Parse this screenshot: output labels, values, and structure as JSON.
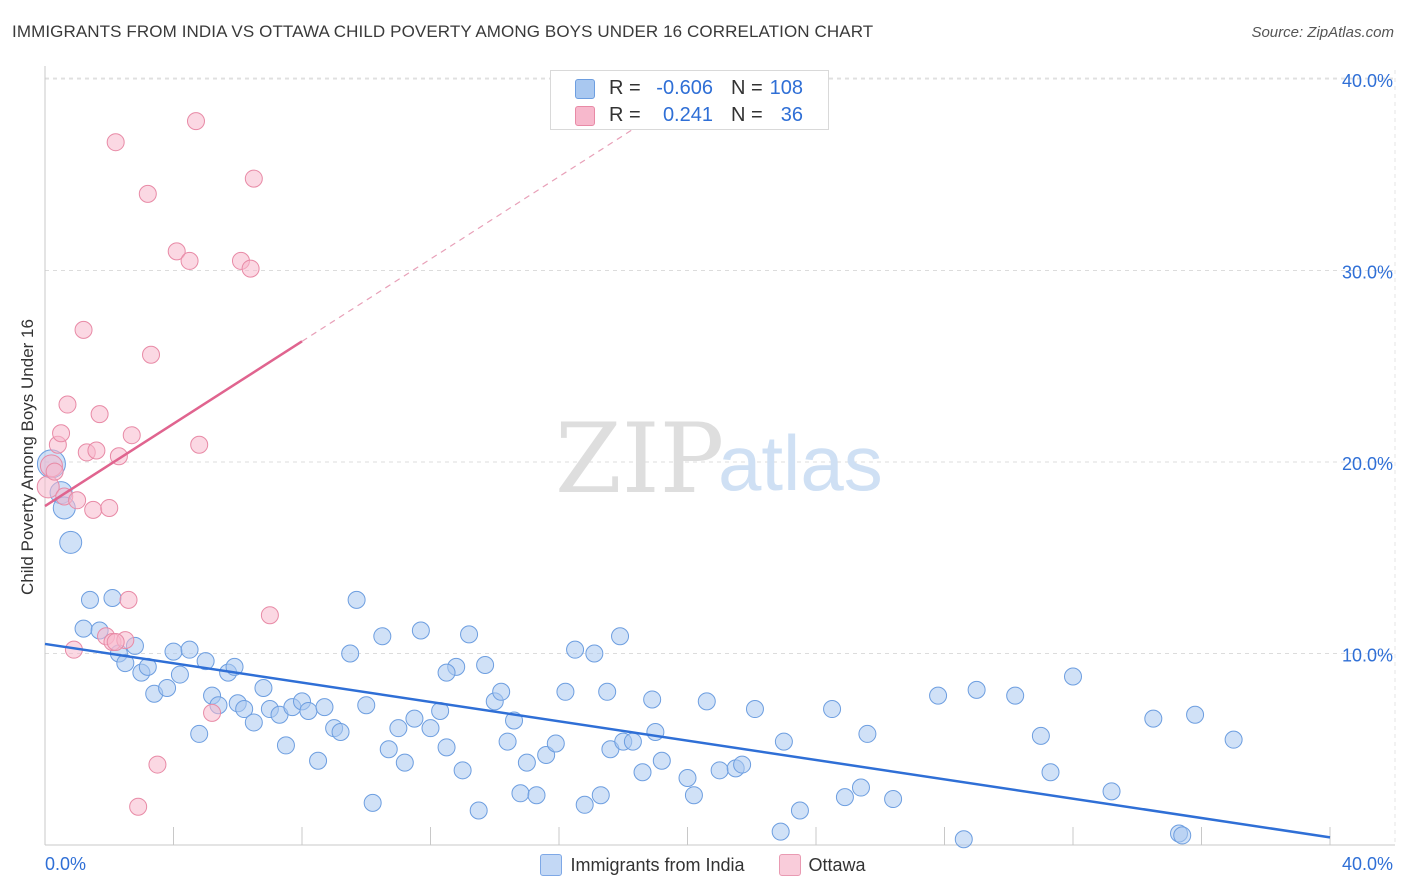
{
  "title": "IMMIGRANTS FROM INDIA VS OTTAWA CHILD POVERTY AMONG BOYS UNDER 16 CORRELATION CHART",
  "source": "Source: ZipAtlas.com",
  "watermark": {
    "zip": "ZIP",
    "atlas": "atlas"
  },
  "stats": [
    {
      "r_label": "R =",
      "r_value": "-0.606",
      "n_label": "N =",
      "n_value": "108",
      "color": "#a9c8f0",
      "border": "#6d9ee0"
    },
    {
      "r_label": "R =",
      "r_value": "0.241",
      "n_label": "N =",
      "n_value": "36",
      "color": "#f7b8cc",
      "border": "#e88aa6"
    }
  ],
  "legend": [
    {
      "label": "Immigrants from India",
      "color": "#c3d8f5",
      "border": "#7ea8e6"
    },
    {
      "label": "Ottawa",
      "color": "#f9ccda",
      "border": "#e99ab2"
    }
  ],
  "chart_data": {
    "type": "scatter",
    "title": "IMMIGRANTS FROM INDIA VS OTTAWA CHILD POVERTY AMONG BOYS UNDER 16 CORRELATION CHART",
    "xlabel": "",
    "ylabel": "Child Poverty Among Boys Under 16",
    "xlim": [
      0,
      40
    ],
    "ylim": [
      0,
      42
    ],
    "x_tick_labels": [
      "0.0%",
      "40.0%"
    ],
    "y_ticks": [
      10,
      20,
      30,
      40
    ],
    "y_tick_labels": [
      "10.0%",
      "20.0%",
      "30.0%",
      "40.0%"
    ],
    "grid": true,
    "legend_position": "bottom",
    "colors": {
      "blue": "#2f6fd6",
      "pink": "#e0648f",
      "axis_label": "#2f6fd6"
    },
    "series": [
      {
        "name": "Immigrants from India",
        "color": "#a9c8f0",
        "edge": "#6d9ee0",
        "points": [
          [
            0.2,
            19.9
          ],
          [
            0.5,
            18.4
          ],
          [
            0.6,
            17.6
          ],
          [
            0.8,
            15.8
          ],
          [
            1.4,
            12.8
          ],
          [
            1.2,
            11.3
          ],
          [
            1.7,
            11.2
          ],
          [
            2.1,
            12.9
          ],
          [
            2.3,
            10.0
          ],
          [
            2.5,
            9.5
          ],
          [
            2.8,
            10.4
          ],
          [
            3.0,
            9.0
          ],
          [
            3.2,
            9.3
          ],
          [
            3.4,
            7.9
          ],
          [
            3.8,
            8.2
          ],
          [
            4.0,
            10.1
          ],
          [
            4.2,
            8.9
          ],
          [
            4.5,
            10.2
          ],
          [
            4.8,
            5.8
          ],
          [
            5.0,
            9.6
          ],
          [
            5.2,
            7.8
          ],
          [
            5.4,
            7.3
          ],
          [
            5.7,
            9.0
          ],
          [
            5.9,
            9.3
          ],
          [
            6.0,
            7.4
          ],
          [
            6.2,
            7.1
          ],
          [
            6.5,
            6.4
          ],
          [
            6.8,
            8.2
          ],
          [
            7.0,
            7.1
          ],
          [
            7.3,
            6.8
          ],
          [
            7.5,
            5.2
          ],
          [
            7.7,
            7.2
          ],
          [
            8.0,
            7.5
          ],
          [
            8.2,
            7.0
          ],
          [
            8.5,
            4.4
          ],
          [
            8.7,
            7.2
          ],
          [
            9.0,
            6.1
          ],
          [
            9.2,
            5.9
          ],
          [
            9.5,
            10.0
          ],
          [
            9.7,
            12.8
          ],
          [
            10.0,
            7.3
          ],
          [
            10.2,
            2.2
          ],
          [
            10.5,
            10.9
          ],
          [
            10.7,
            5.0
          ],
          [
            11.0,
            6.1
          ],
          [
            11.2,
            4.3
          ],
          [
            11.5,
            6.6
          ],
          [
            11.7,
            11.2
          ],
          [
            12.0,
            6.1
          ],
          [
            12.3,
            7.0
          ],
          [
            12.5,
            5.1
          ],
          [
            12.8,
            9.3
          ],
          [
            13.0,
            3.9
          ],
          [
            13.2,
            11.0
          ],
          [
            13.5,
            1.8
          ],
          [
            13.7,
            9.4
          ],
          [
            14.0,
            7.5
          ],
          [
            14.2,
            8.0
          ],
          [
            14.4,
            5.4
          ],
          [
            14.6,
            6.5
          ],
          [
            14.8,
            2.7
          ],
          [
            15.0,
            4.3
          ],
          [
            15.3,
            2.6
          ],
          [
            15.6,
            4.7
          ],
          [
            15.9,
            5.3
          ],
          [
            16.2,
            8.0
          ],
          [
            16.5,
            10.2
          ],
          [
            16.8,
            2.1
          ],
          [
            17.1,
            10.0
          ],
          [
            17.3,
            2.6
          ],
          [
            17.6,
            5.0
          ],
          [
            17.9,
            10.9
          ],
          [
            18.0,
            5.4
          ],
          [
            18.3,
            5.4
          ],
          [
            18.6,
            3.8
          ],
          [
            18.9,
            7.6
          ],
          [
            19.0,
            5.9
          ],
          [
            19.2,
            4.4
          ],
          [
            20.0,
            3.5
          ],
          [
            20.2,
            2.6
          ],
          [
            20.6,
            7.5
          ],
          [
            21.0,
            3.9
          ],
          [
            21.5,
            4.0
          ],
          [
            21.7,
            4.2
          ],
          [
            22.1,
            7.1
          ],
          [
            22.9,
            0.7
          ],
          [
            23.0,
            5.4
          ],
          [
            23.5,
            1.8
          ],
          [
            24.5,
            7.1
          ],
          [
            24.9,
            2.5
          ],
          [
            25.4,
            3.0
          ],
          [
            25.6,
            5.8
          ],
          [
            26.4,
            2.4
          ],
          [
            27.8,
            7.8
          ],
          [
            28.6,
            0.3
          ],
          [
            29.0,
            8.1
          ],
          [
            30.2,
            7.8
          ],
          [
            31.0,
            5.7
          ],
          [
            31.3,
            3.8
          ],
          [
            32.0,
            8.8
          ],
          [
            33.2,
            2.8
          ],
          [
            34.5,
            6.6
          ],
          [
            35.3,
            0.6
          ],
          [
            35.4,
            0.5
          ],
          [
            35.8,
            6.8
          ],
          [
            37.0,
            5.5
          ],
          [
            17.5,
            8.0
          ],
          [
            12.5,
            9.0
          ]
        ],
        "trend": {
          "x": [
            0,
            40
          ],
          "y": [
            10.5,
            0.4
          ],
          "color": "#2f6fd6"
        }
      },
      {
        "name": "Ottawa",
        "color": "#f7b8cc",
        "edge": "#e88aa6",
        "points": [
          [
            0.1,
            18.7
          ],
          [
            0.2,
            19.8
          ],
          [
            0.4,
            20.9
          ],
          [
            0.5,
            21.5
          ],
          [
            0.6,
            18.2
          ],
          [
            0.7,
            23.0
          ],
          [
            0.9,
            10.2
          ],
          [
            1.0,
            18.0
          ],
          [
            1.2,
            26.9
          ],
          [
            1.3,
            20.5
          ],
          [
            1.5,
            17.5
          ],
          [
            1.6,
            20.6
          ],
          [
            1.7,
            22.5
          ],
          [
            1.9,
            10.9
          ],
          [
            2.0,
            17.6
          ],
          [
            2.1,
            10.6
          ],
          [
            2.2,
            36.7
          ],
          [
            2.3,
            20.3
          ],
          [
            2.5,
            10.7
          ],
          [
            2.6,
            12.8
          ],
          [
            2.7,
            21.4
          ],
          [
            2.9,
            2.0
          ],
          [
            3.2,
            34.0
          ],
          [
            3.3,
            25.6
          ],
          [
            3.5,
            4.2
          ],
          [
            4.1,
            31.0
          ],
          [
            4.5,
            30.5
          ],
          [
            4.7,
            37.8
          ],
          [
            4.8,
            20.9
          ],
          [
            5.2,
            6.9
          ],
          [
            6.1,
            30.5
          ],
          [
            6.4,
            30.1
          ],
          [
            6.5,
            34.8
          ],
          [
            7.0,
            12.0
          ],
          [
            2.2,
            10.6
          ],
          [
            0.3,
            19.5
          ]
        ],
        "trend": {
          "x": [
            0,
            8
          ],
          "y": [
            17.7,
            26.3
          ],
          "color": "#e0648f"
        },
        "trend_extension": {
          "x": [
            8,
            20
          ],
          "y": [
            26.3,
            39.2
          ],
          "color": "#e8a0b8"
        }
      }
    ]
  }
}
